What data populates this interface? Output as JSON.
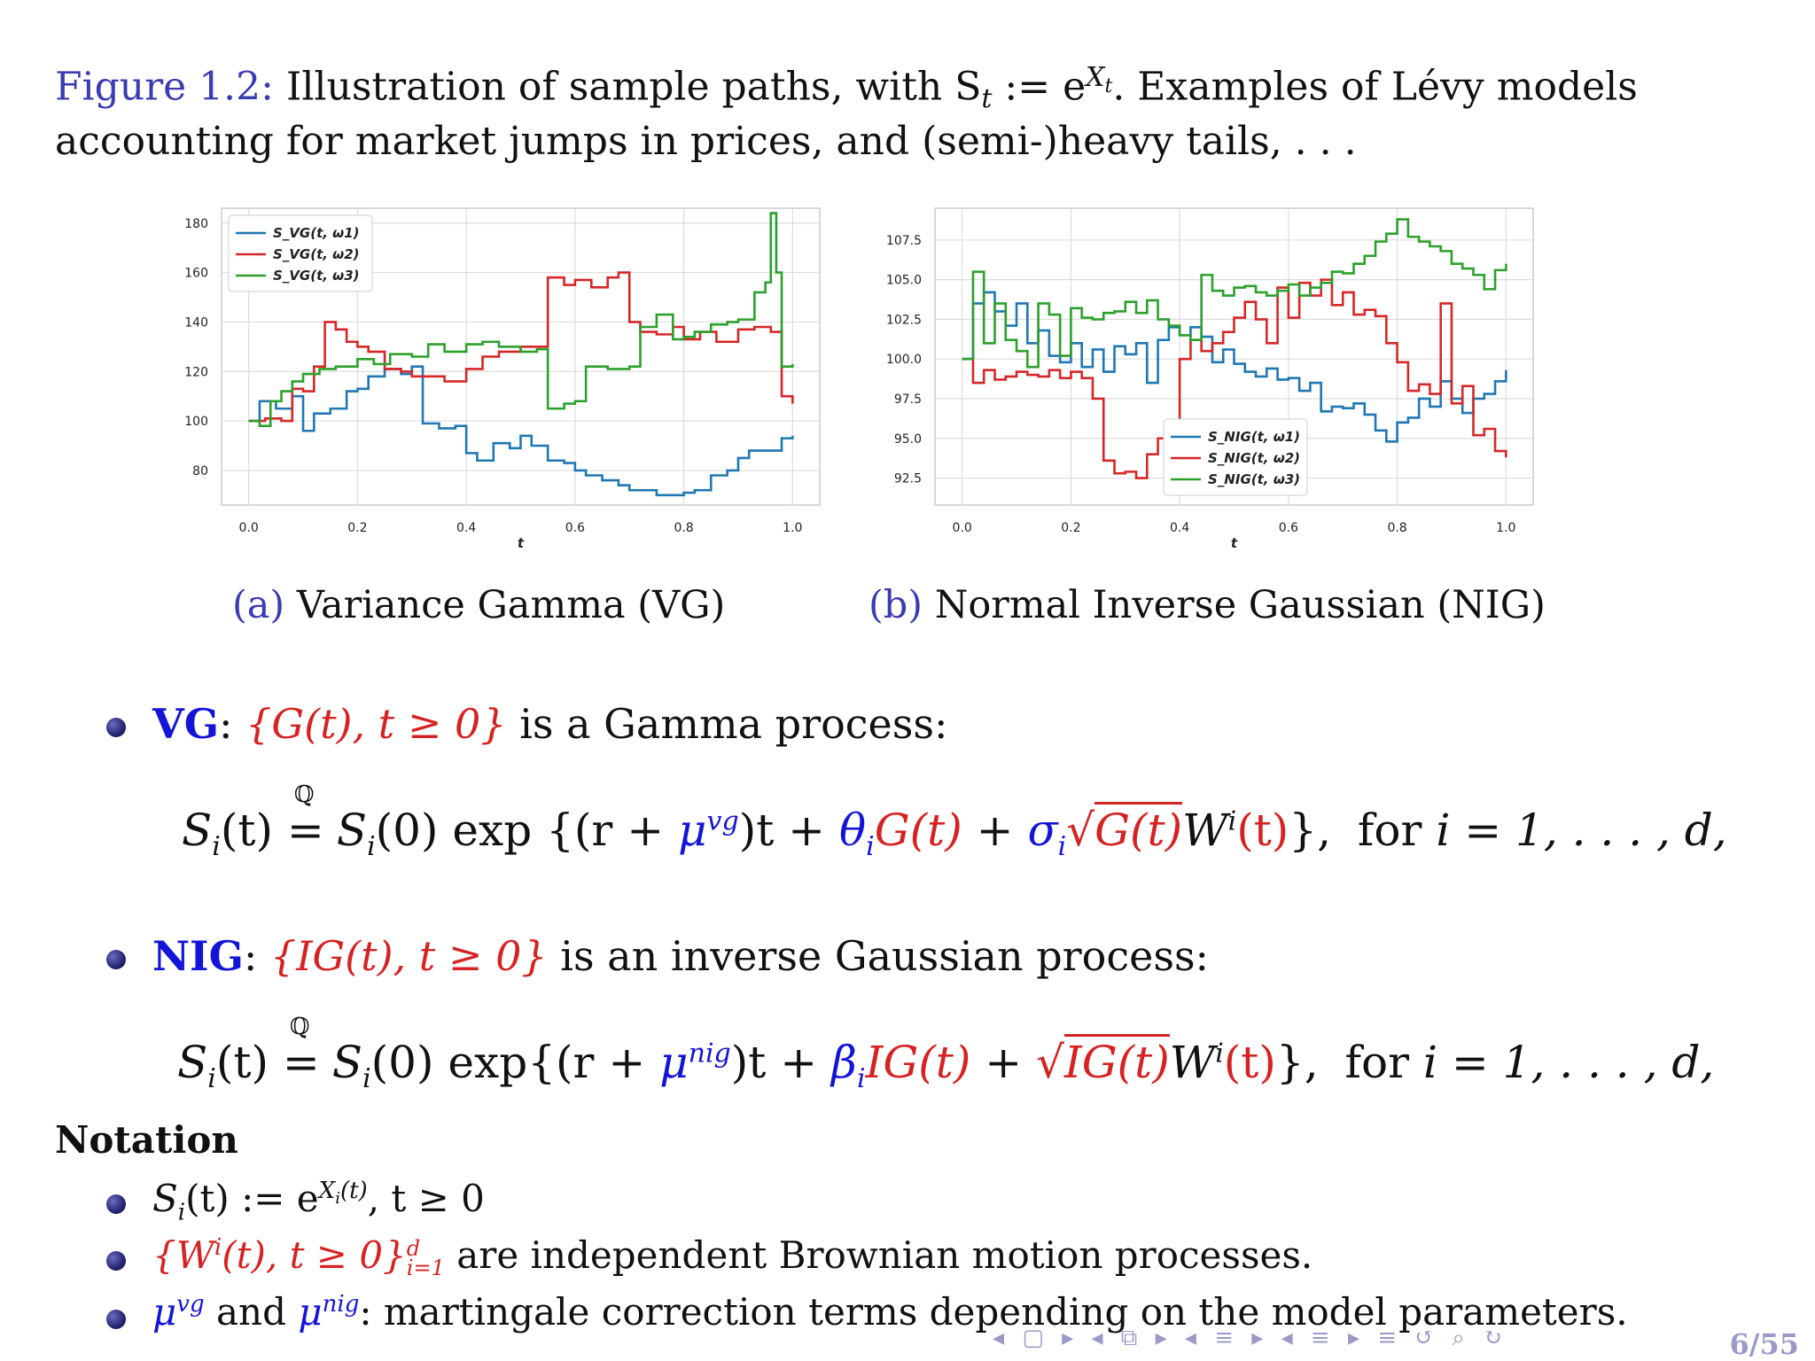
{
  "figure": {
    "label": "Figure 1.2:",
    "text_line1": "Illustration of sample paths, with S",
    "text_line1b": " := e",
    "text_line1c": ". Examples of Lévy models",
    "text_line2": "accounting for market jumps in prices, and (semi-)heavy tails, . . ."
  },
  "subcaptions": [
    {
      "tag": "(a)",
      "text": "Variance Gamma (VG)"
    },
    {
      "tag": "(b)",
      "text": "Normal Inverse Gaussian (NIG)"
    }
  ],
  "chart_data": [
    {
      "type": "line",
      "xlabel": "t",
      "ylabel": "",
      "xlim": [
        -0.05,
        1.05
      ],
      "ylim": [
        66,
        186
      ],
      "xticks": [
        "0.0",
        "0.2",
        "0.4",
        "0.6",
        "0.8",
        "1.0"
      ],
      "xtick_values": [
        0,
        0.2,
        0.4,
        0.6,
        0.8,
        1.0
      ],
      "yticks": [
        "80",
        "100",
        "120",
        "140",
        "160",
        "180"
      ],
      "ytick_values": [
        80,
        100,
        120,
        140,
        160,
        180
      ],
      "grid": true,
      "legend_position": "top-left",
      "series": [
        {
          "name": "S_VG(t, ω1)",
          "color": "#1f77b4",
          "x": [
            0,
            0.02,
            0.05,
            0.08,
            0.1,
            0.12,
            0.15,
            0.18,
            0.2,
            0.22,
            0.25,
            0.28,
            0.3,
            0.32,
            0.35,
            0.38,
            0.4,
            0.42,
            0.45,
            0.48,
            0.5,
            0.52,
            0.55,
            0.58,
            0.6,
            0.62,
            0.65,
            0.68,
            0.7,
            0.72,
            0.75,
            0.78,
            0.8,
            0.82,
            0.85,
            0.88,
            0.9,
            0.92,
            0.95,
            0.98,
            1.0
          ],
          "values": [
            100,
            108,
            105,
            110,
            96,
            103,
            105,
            112,
            113,
            118,
            121,
            119,
            122,
            99,
            97,
            98,
            87,
            84,
            91,
            89,
            94,
            90,
            84,
            83,
            80,
            78,
            76,
            74,
            72,
            72,
            70,
            70,
            71,
            72,
            78,
            80,
            85,
            88,
            88,
            93,
            94
          ]
        },
        {
          "name": "S_VG(t, ω2)",
          "color": "#d62728",
          "x": [
            0,
            0.03,
            0.06,
            0.08,
            0.1,
            0.12,
            0.14,
            0.16,
            0.18,
            0.2,
            0.22,
            0.25,
            0.28,
            0.3,
            0.33,
            0.36,
            0.4,
            0.43,
            0.46,
            0.5,
            0.55,
            0.58,
            0.6,
            0.63,
            0.66,
            0.68,
            0.7,
            0.72,
            0.75,
            0.78,
            0.8,
            0.83,
            0.86,
            0.9,
            0.93,
            0.96,
            0.98,
            1.0
          ],
          "values": [
            100,
            101,
            100,
            113,
            112,
            122,
            140,
            137,
            132,
            130,
            128,
            121,
            120,
            118,
            118,
            116,
            121,
            126,
            128,
            130,
            158,
            155,
            157,
            154,
            158,
            160,
            140,
            136,
            135,
            138,
            133,
            136,
            132,
            137,
            138,
            136,
            110,
            107
          ]
        },
        {
          "name": "S_VG(t, ω3)",
          "color": "#2ca02c",
          "x": [
            0,
            0.02,
            0.04,
            0.06,
            0.08,
            0.1,
            0.13,
            0.16,
            0.2,
            0.23,
            0.26,
            0.3,
            0.33,
            0.36,
            0.4,
            0.43,
            0.46,
            0.5,
            0.53,
            0.55,
            0.58,
            0.6,
            0.62,
            0.66,
            0.7,
            0.72,
            0.75,
            0.78,
            0.8,
            0.82,
            0.85,
            0.88,
            0.9,
            0.93,
            0.95,
            0.96,
            0.97,
            0.98,
            1.0
          ],
          "values": [
            100,
            98,
            108,
            112,
            116,
            119,
            121,
            122,
            125,
            123,
            127,
            126,
            131,
            128,
            131,
            132,
            130,
            128,
            129,
            105,
            107,
            108,
            122,
            121,
            122,
            138,
            143,
            133,
            134,
            136,
            139,
            140,
            141,
            152,
            156,
            184,
            160,
            122,
            123
          ]
        }
      ]
    },
    {
      "type": "line",
      "xlabel": "t",
      "ylabel": "",
      "xlim": [
        -0.05,
        1.05
      ],
      "ylim": [
        90.8,
        109.5
      ],
      "xticks": [
        "0.0",
        "0.2",
        "0.4",
        "0.6",
        "0.8",
        "1.0"
      ],
      "xtick_values": [
        0,
        0.2,
        0.4,
        0.6,
        0.8,
        1.0
      ],
      "yticks": [
        "92.5",
        "95.0",
        "97.5",
        "100.0",
        "102.5",
        "105.0",
        "107.5"
      ],
      "ytick_values": [
        92.5,
        95.0,
        97.5,
        100.0,
        102.5,
        105.0,
        107.5
      ],
      "grid": true,
      "legend_position": "bottom-center",
      "series": [
        {
          "name": "S_NIG(t, ω1)",
          "color": "#1f77b4",
          "x": [
            0,
            0.02,
            0.04,
            0.06,
            0.08,
            0.1,
            0.12,
            0.14,
            0.16,
            0.18,
            0.2,
            0.22,
            0.24,
            0.26,
            0.28,
            0.3,
            0.32,
            0.34,
            0.36,
            0.38,
            0.4,
            0.42,
            0.44,
            0.46,
            0.48,
            0.5,
            0.52,
            0.54,
            0.56,
            0.58,
            0.6,
            0.62,
            0.64,
            0.66,
            0.68,
            0.7,
            0.72,
            0.74,
            0.76,
            0.78,
            0.8,
            0.82,
            0.84,
            0.86,
            0.88,
            0.9,
            0.92,
            0.94,
            0.96,
            0.98,
            1.0
          ],
          "values": [
            100.0,
            103.5,
            104.2,
            103.0,
            102.1,
            103.5,
            101.0,
            101.8,
            100.2,
            99.8,
            101.0,
            99.5,
            100.6,
            99.2,
            100.8,
            100.3,
            101.0,
            98.5,
            101.2,
            102.0,
            101.5,
            102.0,
            101.4,
            99.8,
            100.6,
            99.7,
            99.2,
            98.9,
            99.4,
            98.7,
            98.8,
            98.0,
            98.5,
            96.7,
            97.0,
            96.9,
            97.2,
            96.5,
            95.5,
            94.8,
            96.0,
            96.3,
            97.5,
            97.0,
            98.6,
            97.5,
            96.6,
            97.5,
            97.8,
            98.6,
            99.3
          ]
        },
        {
          "name": "S_NIG(t, ω2)",
          "color": "#d62728",
          "x": [
            0,
            0.02,
            0.04,
            0.06,
            0.08,
            0.1,
            0.12,
            0.14,
            0.16,
            0.18,
            0.2,
            0.22,
            0.24,
            0.26,
            0.28,
            0.3,
            0.32,
            0.34,
            0.36,
            0.38,
            0.4,
            0.42,
            0.44,
            0.46,
            0.48,
            0.5,
            0.52,
            0.54,
            0.56,
            0.58,
            0.6,
            0.62,
            0.64,
            0.66,
            0.68,
            0.7,
            0.72,
            0.74,
            0.76,
            0.78,
            0.8,
            0.82,
            0.84,
            0.86,
            0.88,
            0.9,
            0.92,
            0.94,
            0.96,
            0.98,
            1.0
          ],
          "values": [
            100.0,
            98.5,
            99.3,
            98.7,
            98.9,
            99.2,
            99.0,
            98.9,
            99.3,
            98.8,
            99.2,
            98.8,
            97.5,
            93.6,
            92.8,
            92.9,
            92.5,
            94.0,
            95.0,
            94.8,
            100.0,
            101.2,
            100.5,
            101.0,
            101.7,
            102.6,
            103.6,
            102.5,
            101.0,
            104.5,
            102.6,
            104.8,
            104.0,
            105.0,
            103.4,
            104.2,
            102.8,
            103.1,
            102.7,
            101.0,
            99.8,
            98.0,
            98.4,
            97.8,
            103.5,
            97.2,
            98.3,
            95.2,
            95.6,
            94.2,
            93.8
          ]
        },
        {
          "name": "S_NIG(t, ω3)",
          "color": "#2ca02c",
          "x": [
            0,
            0.02,
            0.04,
            0.06,
            0.08,
            0.1,
            0.12,
            0.14,
            0.16,
            0.18,
            0.2,
            0.22,
            0.24,
            0.26,
            0.28,
            0.3,
            0.32,
            0.34,
            0.36,
            0.38,
            0.4,
            0.42,
            0.44,
            0.46,
            0.48,
            0.5,
            0.52,
            0.54,
            0.56,
            0.58,
            0.6,
            0.62,
            0.64,
            0.66,
            0.68,
            0.7,
            0.72,
            0.74,
            0.76,
            0.78,
            0.8,
            0.82,
            0.84,
            0.86,
            0.88,
            0.9,
            0.92,
            0.94,
            0.96,
            0.98,
            1.0
          ],
          "values": [
            100.0,
            105.5,
            101.0,
            103.5,
            101.2,
            100.5,
            99.5,
            103.5,
            102.8,
            100.2,
            103.2,
            102.6,
            102.5,
            102.9,
            103.0,
            103.6,
            102.9,
            103.7,
            102.5,
            102.1,
            101.5,
            101.2,
            105.3,
            104.3,
            104.0,
            104.5,
            104.6,
            104.2,
            104.0,
            104.3,
            104.7,
            104.0,
            104.5,
            104.8,
            105.5,
            105.4,
            106.0,
            106.5,
            107.4,
            107.9,
            108.8,
            107.7,
            107.4,
            107.1,
            106.8,
            106.0,
            105.7,
            105.3,
            104.4,
            105.6,
            106.0
          ]
        }
      ]
    }
  ],
  "bullets": {
    "vg": {
      "name": "VG",
      "colon": ":",
      "set": "{G(t), t ≥ 0}",
      "desc": "is a Gamma process:"
    },
    "nig": {
      "name": "NIG",
      "colon": ":",
      "set": "{IG(t), t ≥ 0}",
      "desc": "is an inverse Gaussian process:"
    }
  },
  "equations": {
    "vg": {
      "lhs": "S",
      "sub_i": "i",
      "t": "(t)",
      "eqsym": "=",
      "q": "ℚ",
      "s0": "(0)",
      "exp": "exp",
      "open": "{(r +",
      "mu": "μ",
      "mu_sup": "vg",
      "mid1": ")t +",
      "theta": "θ",
      "gt": "G(t)",
      "plus": "+",
      "sigma": "σ",
      "sqrt_arg": "G(t)",
      "w": "W",
      "w_sup": "i",
      "wt": "(t)",
      "close": "},",
      "for": "for",
      "range": "i = 1, . . . , d,"
    },
    "nig": {
      "open": "{(r +",
      "mu_sup": "nig",
      "mid1": ")t +",
      "beta": "β",
      "igt": "IG(t)",
      "plus": "+",
      "sqrt_arg": "IG(t)",
      "close": "},",
      "for": "for",
      "range": "i = 1, . . . , d,"
    }
  },
  "notation": {
    "title": "Notation",
    "item1_rest": ", t ≥ 0",
    "item2_set": "{W",
    "item2_set_b": "(t), t ≥ 0}",
    "item2_sup": "d",
    "item2_sub": "i=1",
    "item2_text": "are independent Brownian motion processes.",
    "item3_and": "and",
    "item3_text": ": martingale correction terms depending on the model parameters."
  },
  "footer": {
    "nav": "◂ ▢ ▸ ◂ ⧉ ▸ ◂ ≡ ▸ ◂ ≡ ▸   ≡   ↺ ⌕ ↻",
    "page": "6/55"
  }
}
